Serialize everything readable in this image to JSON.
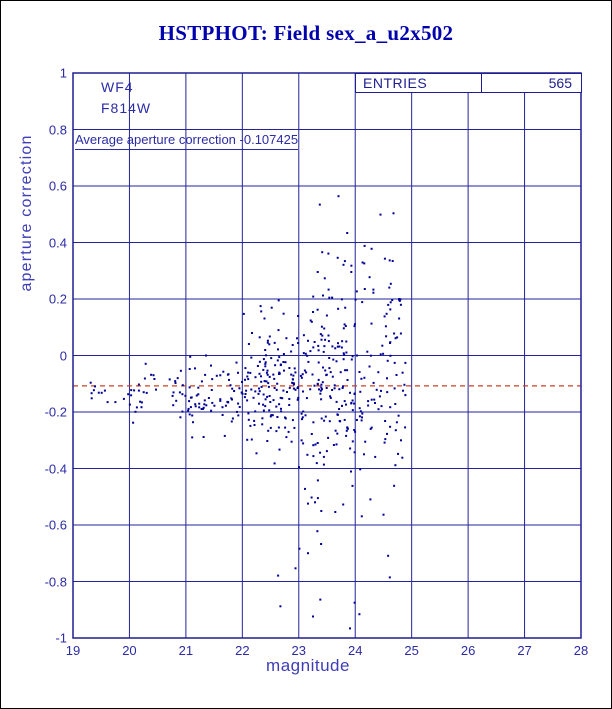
{
  "title": "HSTPHOT: Field sex_a_u2x502",
  "annotations": {
    "camera": "WF4",
    "filter": "F814W",
    "average_text": "Average aperture correction -0.107425"
  },
  "stats_box": {
    "label": "ENTRIES",
    "value": "565"
  },
  "colors": {
    "background": "#ffffff",
    "page_border": "#000000",
    "title": "#0000ad",
    "axis_frame": "#1e1e90",
    "grid": "#23239b",
    "tick_text": "#2b2ba6",
    "axis_label": "#3d3db8",
    "points": "#000096",
    "reference_line": "#cc4125"
  },
  "chart_data": {
    "type": "scatter",
    "title": "HSTPHOT: Field sex_a_u2x502",
    "xlabel": "magnitude",
    "ylabel": "aperture correction",
    "xlim": [
      19,
      28
    ],
    "ylim": [
      -1,
      1
    ],
    "x_ticks": [
      19,
      20,
      21,
      22,
      23,
      24,
      25,
      26,
      27,
      28
    ],
    "x_tick_labels": [
      "19",
      "20",
      "21",
      "22",
      "23",
      "24",
      "25",
      "26",
      "27",
      "28"
    ],
    "y_ticks": [
      1,
      0.8,
      0.6,
      0.4,
      0.2,
      0,
      -0.2,
      -0.4,
      -0.6,
      -0.8,
      -1
    ],
    "y_tick_labels": [
      "1",
      "0.8",
      "0.6",
      "0.4",
      "0.2",
      "0",
      "-0.2",
      "-0.4",
      "-0.6",
      "-0.8",
      "-1"
    ],
    "grid": true,
    "legend": null,
    "entries": 565,
    "average_aperture_correction": -0.107425,
    "reference_line": {
      "y": -0.107425,
      "style": "dashed",
      "color": "#cc4125"
    },
    "point_distribution": [
      {
        "n": 12,
        "x_min": 19.3,
        "x_max": 20.0,
        "y_mean": -0.13,
        "y_sd": 0.03
      },
      {
        "n": 35,
        "x_min": 20.0,
        "x_max": 21.0,
        "y_mean": -0.13,
        "y_sd": 0.05
      },
      {
        "n": 70,
        "x_min": 21.0,
        "x_max": 22.0,
        "y_mean": -0.135,
        "y_sd": 0.07
      },
      {
        "n": 150,
        "x_min": 22.0,
        "x_max": 23.0,
        "y_mean": -0.12,
        "y_sd": 0.11
      },
      {
        "n": 170,
        "x_min": 23.0,
        "x_max": 24.0,
        "y_mean": -0.1,
        "y_sd": 0.2
      },
      {
        "n": 102,
        "x_min": 24.0,
        "x_max": 24.9,
        "y_mean": -0.08,
        "y_sd": 0.24
      },
      {
        "n": 18,
        "x_min": 22.6,
        "x_max": 24.7,
        "uniform": true,
        "y_min": -0.97,
        "y_max": -0.5
      },
      {
        "n": 8,
        "x_min": 23.3,
        "x_max": 24.7,
        "uniform": true,
        "y_min": 0.25,
        "y_max": 0.6
      }
    ]
  }
}
